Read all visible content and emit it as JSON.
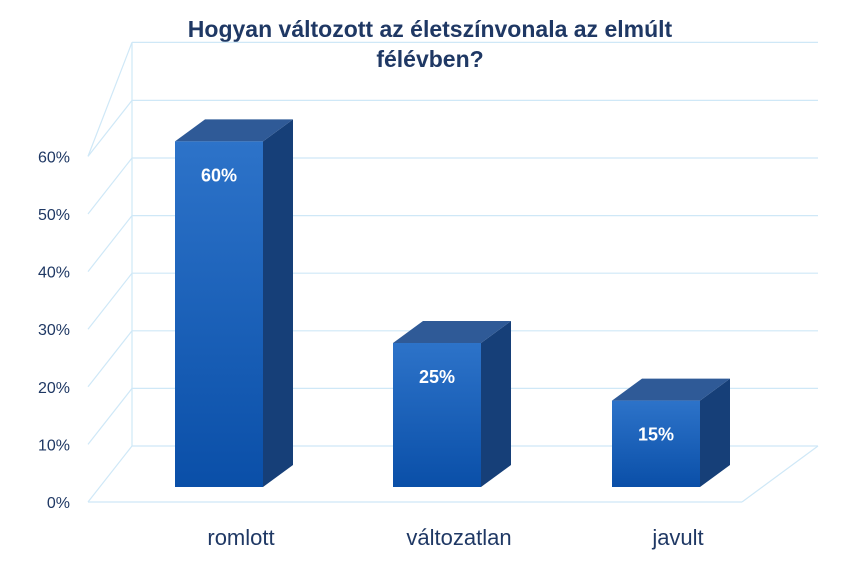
{
  "chart_data": {
    "type": "bar",
    "title_lines": [
      "Hogyan változott az életszínvonala az elmúlt",
      "félévben?"
    ],
    "categories": [
      "romlott",
      "változatlan",
      "javult"
    ],
    "values": [
      60,
      25,
      15
    ],
    "data_labels": [
      "60%",
      "25%",
      "15%"
    ],
    "ylim": [
      0,
      60
    ],
    "yticks": [
      "0%",
      "10%",
      "20%",
      "30%",
      "40%",
      "50%",
      "60%"
    ],
    "grid": true,
    "legend": "none",
    "style": "3d-column",
    "colors": {
      "bar_top": "#2d6fc4",
      "bar_bottom": "#0a4fa8",
      "bar_side": "#163f78",
      "bar_cap": "#2f5a97",
      "grid": "#cfe8f7",
      "text": "#1f3864"
    }
  }
}
